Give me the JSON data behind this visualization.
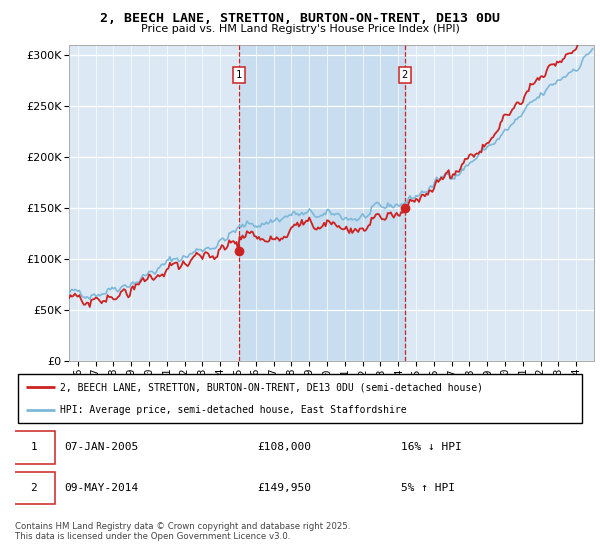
{
  "title_line1": "2, BEECH LANE, STRETTON, BURTON-ON-TRENT, DE13 0DU",
  "title_line2": "Price paid vs. HM Land Registry's House Price Index (HPI)",
  "ytick_values": [
    0,
    50000,
    100000,
    150000,
    200000,
    250000,
    300000
  ],
  "ylim": [
    0,
    310000
  ],
  "xlim_start": 1995.5,
  "xlim_end": 2025.0,
  "sale1_date": 2005.04,
  "sale1_price": 108000,
  "sale2_date": 2014.37,
  "sale2_price": 149950,
  "legend_line1": "2, BEECH LANE, STRETTON, BURTON-ON-TRENT, DE13 0DU (semi-detached house)",
  "legend_line2": "HPI: Average price, semi-detached house, East Staffordshire",
  "footer": "Contains HM Land Registry data © Crown copyright and database right 2025.\nThis data is licensed under the Open Government Licence v3.0.",
  "hpi_color": "#7db8d8",
  "price_color": "#cc2222",
  "background_color": "#dce9f5",
  "sale_box_color": "#cc2222",
  "vline_color": "#cc2222",
  "span_color": "#c8ddf0"
}
